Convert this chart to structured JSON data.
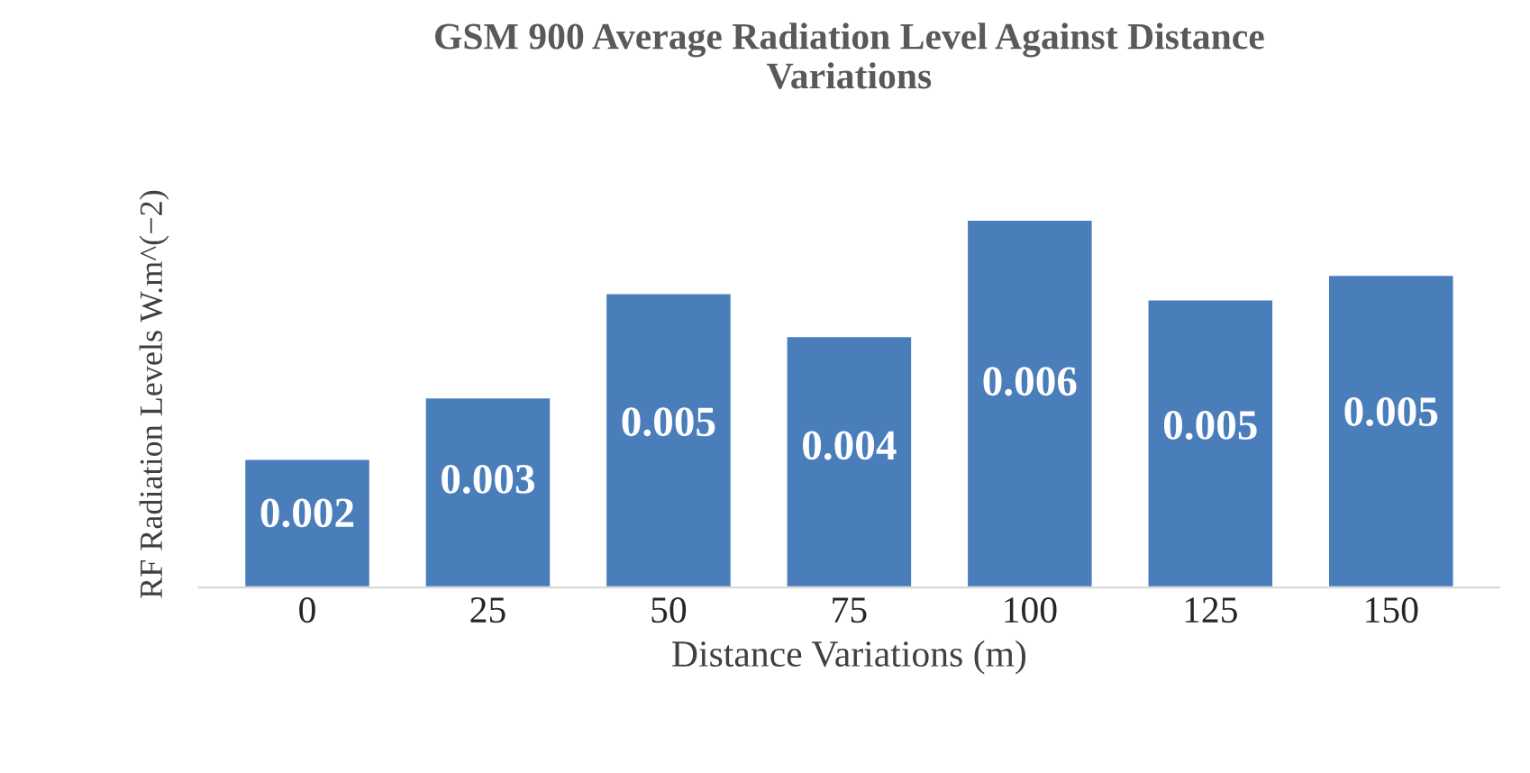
{
  "chart_data": {
    "type": "bar",
    "title": "GSM 900 Average Radiation Level Against Distance\nVariations",
    "xlabel": "Distance Variations (m)",
    "ylabel": "RF Radiation Levels W.m^(−2)",
    "categories": [
      "0",
      "25",
      "50",
      "75",
      "100",
      "125",
      "150"
    ],
    "values": [
      0.0021,
      0.0031,
      0.0048,
      0.0041,
      0.006,
      0.0047,
      0.0051
    ],
    "value_labels": [
      "0.002",
      "0.003",
      "0.005",
      "0.004",
      "0.006",
      "0.005",
      "0.005"
    ],
    "color": "#4a7ebb",
    "grid": false,
    "legend": false
  }
}
